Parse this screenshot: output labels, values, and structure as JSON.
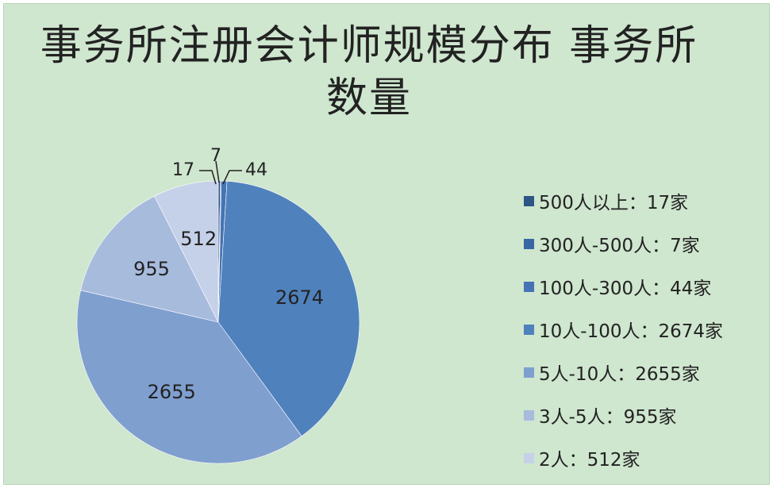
{
  "chart_data": {
    "type": "pie",
    "title": "事务所注册会计师规模分布 事务所数量",
    "slices": [
      {
        "label": "500人以上",
        "value": 17,
        "legend": "500人以上：17家",
        "color": "#2f5585"
      },
      {
        "label": "300人-500人",
        "value": 7,
        "legend": "300人-500人：7家",
        "color": "#3a67a3"
      },
      {
        "label": "100人-300人",
        "value": 44,
        "legend": "100人-300人：44家",
        "color": "#4474b3"
      },
      {
        "label": "10人-100人",
        "value": 2674,
        "legend": "10人-100人：2674家",
        "color": "#4f81bd"
      },
      {
        "label": "5人-10人",
        "value": 2655,
        "legend": "5人-10人：2655家",
        "color": "#7f9fcf"
      },
      {
        "label": "3人-5人",
        "value": 955,
        "legend": "3人-5人：955家",
        "color": "#a7bbdd"
      },
      {
        "label": "2人",
        "value": 512,
        "legend": "2人：512家",
        "color": "#c5d1e8"
      }
    ],
    "data_labels": [
      "17",
      "7",
      "44",
      "2674",
      "2655",
      "955",
      "512"
    ],
    "legend_position": "right"
  }
}
